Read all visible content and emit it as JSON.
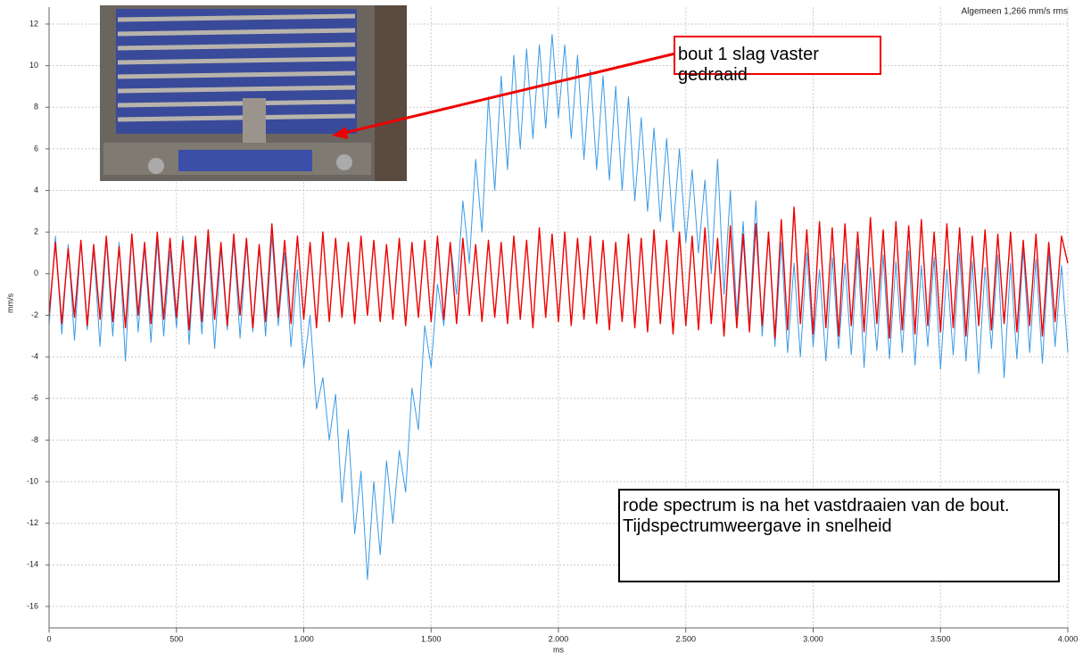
{
  "chart_data": {
    "type": "line",
    "title": "Algemeen 1,266 mm/s rms",
    "xlabel": "ms",
    "ylabel": "mm/s",
    "annotations": [
      "bout 1 slag vaster gedraaid",
      "rode spectrum is na het vastdraaien van de bout.  Tijdspectrumweergave in snelheid"
    ],
    "xlim": [
      0,
      4000
    ],
    "ylim": [
      -17,
      12.8
    ],
    "xticks": [
      0,
      500,
      {
        "value": 1000,
        "label": "1.000"
      },
      {
        "value": 1500,
        "label": "1.500"
      },
      {
        "value": 2000,
        "label": "2.000"
      },
      {
        "value": 2500,
        "label": "2.500"
      },
      {
        "value": 3000,
        "label": "3.000"
      },
      {
        "value": 3500,
        "label": "3.500"
      },
      {
        "value": 4000,
        "label": "4.000"
      }
    ],
    "yticks": [
      -16,
      -14,
      -12,
      -10,
      -8,
      -6,
      -4,
      -2,
      0,
      2,
      4,
      6,
      8,
      10,
      12
    ],
    "grid": true,
    "x": [
      0,
      25,
      50,
      75,
      100,
      125,
      150,
      175,
      200,
      225,
      250,
      275,
      300,
      325,
      350,
      375,
      400,
      425,
      450,
      475,
      500,
      525,
      550,
      575,
      600,
      625,
      650,
      675,
      700,
      725,
      750,
      775,
      800,
      825,
      850,
      875,
      900,
      925,
      950,
      975,
      1000,
      1025,
      1050,
      1075,
      1100,
      1125,
      1150,
      1175,
      1200,
      1225,
      1250,
      1275,
      1300,
      1325,
      1350,
      1375,
      1400,
      1425,
      1450,
      1475,
      1500,
      1525,
      1550,
      1575,
      1600,
      1625,
      1650,
      1675,
      1700,
      1725,
      1750,
      1775,
      1800,
      1825,
      1850,
      1875,
      1900,
      1925,
      1950,
      1975,
      2000,
      2025,
      2050,
      2075,
      2100,
      2125,
      2150,
      2175,
      2200,
      2225,
      2250,
      2275,
      2300,
      2325,
      2350,
      2375,
      2400,
      2425,
      2450,
      2475,
      2500,
      2525,
      2550,
      2575,
      2600,
      2625,
      2650,
      2675,
      2700,
      2725,
      2750,
      2775,
      2800,
      2825,
      2850,
      2875,
      2900,
      2925,
      2950,
      2975,
      3000,
      3025,
      3050,
      3075,
      3100,
      3125,
      3150,
      3175,
      3200,
      3225,
      3250,
      3275,
      3300,
      3325,
      3350,
      3375,
      3400,
      3425,
      3450,
      3475,
      3500,
      3525,
      3550,
      3575,
      3600,
      3625,
      3650,
      3675,
      3700,
      3725,
      3750,
      3775,
      3800,
      3825,
      3850,
      3875,
      3900,
      3925,
      3950,
      3975,
      4000
    ],
    "series": [
      {
        "color": "#3a9ae6",
        "values": [
          -2.5,
          1.8,
          -2.9,
          1.4,
          -3.2,
          1.6,
          -2.7,
          1.2,
          -3.5,
          1.7,
          -3.0,
          1.5,
          -4.2,
          1.9,
          -2.8,
          1.3,
          -3.3,
          1.6,
          -3.0,
          1.1,
          -2.6,
          1.8,
          -3.4,
          1.4,
          -2.9,
          1.7,
          -3.6,
          1.2,
          -2.7,
          1.6,
          -3.1,
          1.5,
          -2.8,
          1.3,
          -3.0,
          1.8,
          -2.5,
          1.0,
          -3.5,
          0.2,
          -4.5,
          -2.0,
          -6.5,
          -5.0,
          -8.0,
          -5.8,
          -11.0,
          -7.5,
          -12.5,
          -9.5,
          -14.7,
          -10.0,
          -13.5,
          -9.0,
          -12.0,
          -8.5,
          -10.5,
          -5.5,
          -7.5,
          -2.5,
          -4.5,
          -0.5,
          -2.5,
          1.5,
          -1.0,
          3.5,
          0.5,
          5.5,
          2.0,
          8.5,
          4.0,
          9.5,
          5.0,
          10.5,
          6.0,
          10.8,
          6.5,
          11.0,
          7.0,
          11.5,
          7.5,
          11.0,
          6.5,
          10.5,
          5.5,
          9.8,
          5.0,
          9.5,
          4.5,
          9.0,
          4.0,
          8.5,
          3.5,
          7.5,
          3.0,
          7.0,
          2.5,
          6.5,
          2.0,
          6.0,
          1.5,
          5.0,
          1.0,
          4.5,
          0.0,
          5.5,
          -1.0,
          4.0,
          -2.0,
          2.5,
          -2.5,
          3.5,
          -3.0,
          2.0,
          -3.5,
          1.5,
          -3.8,
          0.5,
          -4.0,
          1.0,
          -3.5,
          0.2,
          -4.2,
          0.8,
          -3.6,
          0.5,
          -3.9,
          1.2,
          -4.5,
          0.3,
          -3.7,
          0.9,
          -4.1,
          0.6,
          -3.8,
          1.1,
          -4.4,
          0.4,
          -3.5,
          0.8,
          -4.6,
          0.2,
          -3.9,
          1.0,
          -4.2,
          0.6,
          -4.8,
          0.3,
          -3.6,
          0.9,
          -5.0,
          0.5,
          -4.1,
          1.2,
          -3.8,
          0.7,
          -4.3,
          1.0,
          -3.5,
          0.4,
          -3.8
        ]
      },
      {
        "color": "#ee0000",
        "values": [
          -2.0,
          1.5,
          -2.4,
          1.2,
          -2.1,
          1.6,
          -2.5,
          1.4,
          -2.2,
          1.8,
          -2.3,
          1.3,
          -2.6,
          1.9,
          -2.0,
          1.5,
          -2.4,
          2.0,
          -2.2,
          1.7,
          -2.1,
          1.6,
          -2.7,
          1.8,
          -2.3,
          2.1,
          -2.2,
          1.5,
          -2.5,
          1.9,
          -2.0,
          1.7,
          -2.6,
          1.4,
          -2.3,
          2.4,
          -2.1,
          1.6,
          -2.4,
          1.8,
          -2.2,
          1.5,
          -2.6,
          2.0,
          -2.3,
          1.7,
          -2.1,
          1.5,
          -2.4,
          1.8,
          -2.0,
          1.6,
          -2.3,
          1.4,
          -2.2,
          1.7,
          -2.5,
          1.5,
          -2.1,
          1.6,
          -2.3,
          1.8,
          -2.2,
          1.5,
          -2.4,
          1.7,
          -2.0,
          1.4,
          -2.3,
          1.6,
          -2.1,
          1.5,
          -2.4,
          1.8,
          -2.2,
          1.6,
          -2.6,
          2.2,
          -2.1,
          1.9,
          -2.3,
          2.0,
          -2.5,
          1.7,
          -2.2,
          1.8,
          -2.4,
          1.6,
          -2.7,
          1.5,
          -2.3,
          1.9,
          -2.6,
          1.7,
          -2.8,
          2.1,
          -2.4,
          1.6,
          -2.9,
          2.0,
          -2.5,
          1.8,
          -2.7,
          2.2,
          -2.4,
          1.7,
          -3.0,
          2.3,
          -2.6,
          1.9,
          -2.8,
          2.4,
          -2.5,
          2.0,
          -3.1,
          2.6,
          -2.7,
          3.2,
          -2.4,
          2.1,
          -2.9,
          2.5,
          -2.6,
          2.2,
          -3.0,
          2.4,
          -2.5,
          2.0,
          -2.8,
          2.7,
          -2.4,
          2.1,
          -3.1,
          2.5,
          -2.7,
          2.3,
          -2.9,
          2.6,
          -2.5,
          2.0,
          -2.8,
          2.4,
          -2.6,
          2.2,
          -3.0,
          1.8,
          -2.5,
          2.1,
          -2.7,
          1.9,
          -2.4,
          2.0,
          -2.8,
          1.6,
          -2.5,
          1.9,
          -3.0,
          1.5,
          -2.3,
          1.8,
          0.5
        ]
      }
    ]
  }
}
